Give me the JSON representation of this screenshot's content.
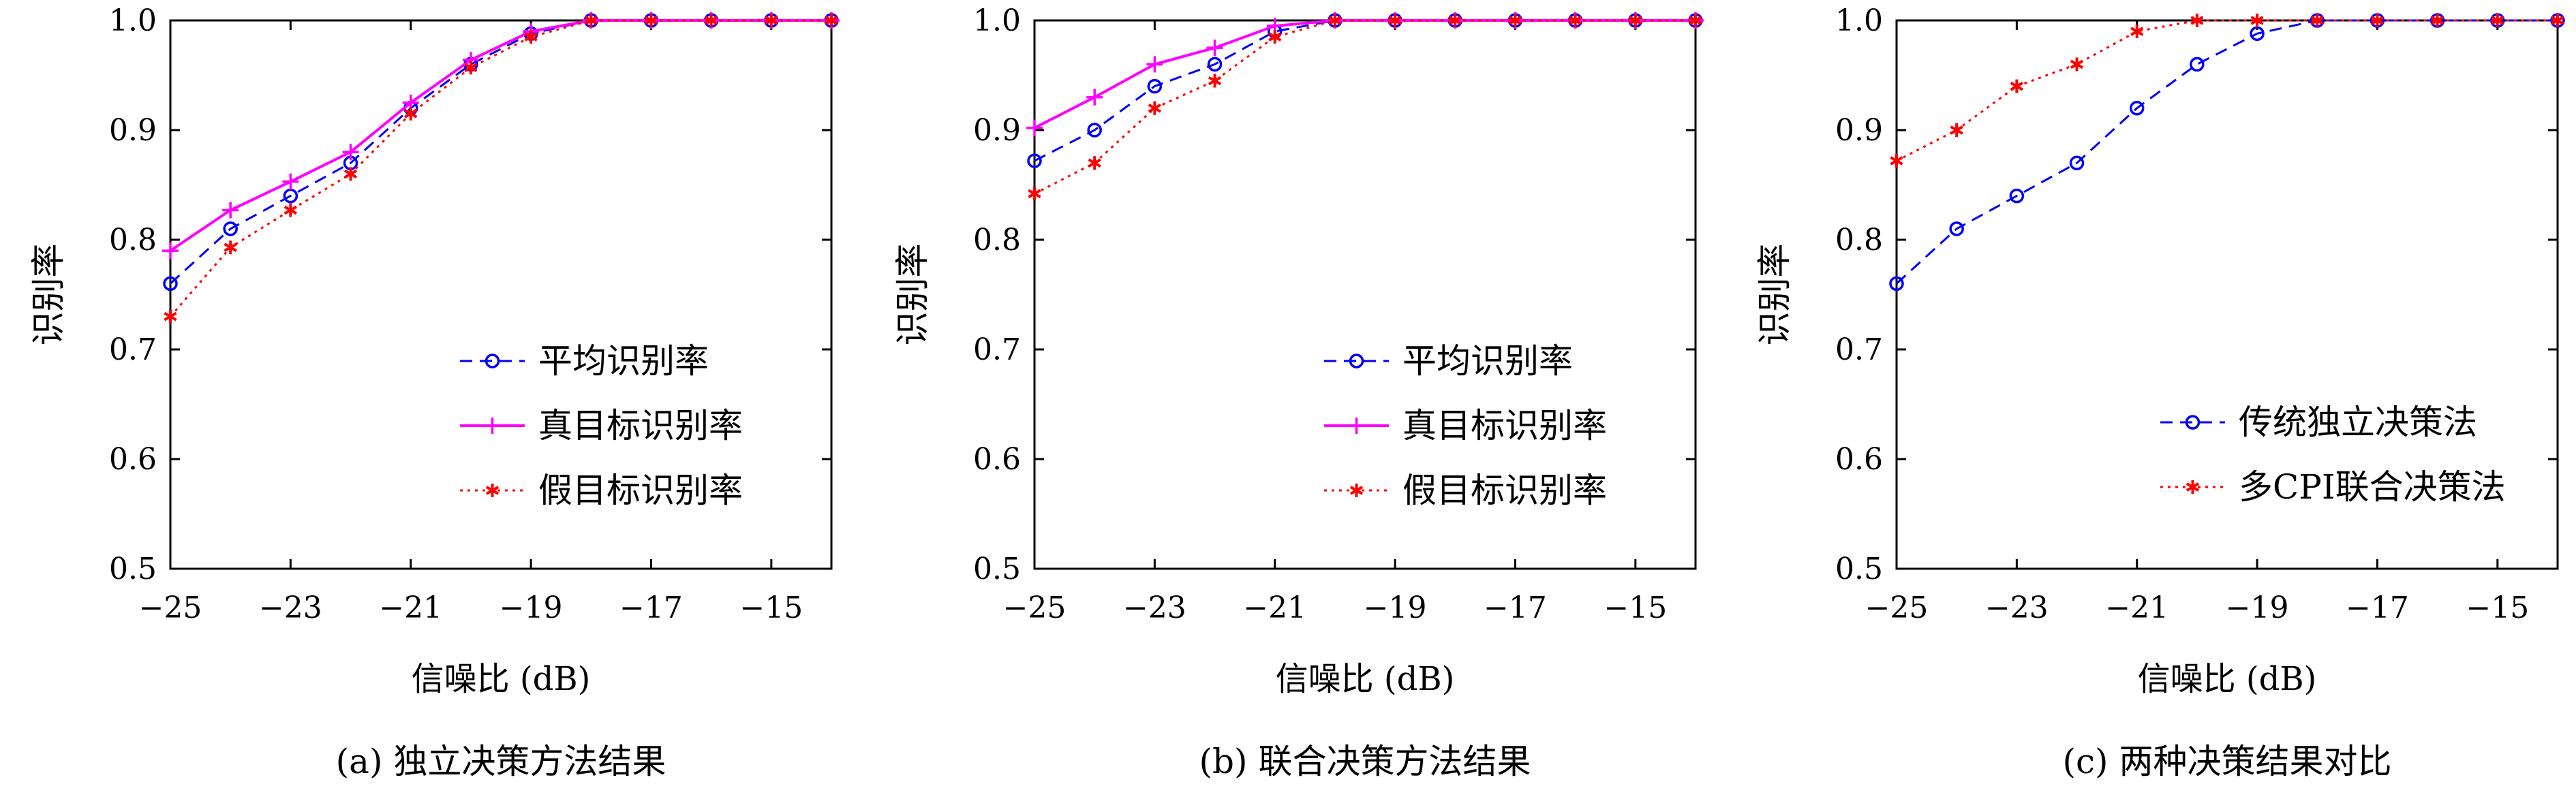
{
  "chart_data": [
    {
      "type": "line",
      "caption": "(a) 独立决策方法结果",
      "xlabel": "信噪比 (dB)",
      "ylabel": "识别率",
      "xlim": [
        -25,
        -14
      ],
      "ylim": [
        0.5,
        1.0
      ],
      "xticks": [
        -25,
        -23,
        -21,
        -19,
        -17,
        -15
      ],
      "xtick_labels": [
        "−25",
        "−23",
        "−21",
        "−19",
        "−17",
        "−15"
      ],
      "yticks": [
        0.5,
        0.6,
        0.7,
        0.8,
        0.9,
        1.0
      ],
      "ytick_labels": [
        "0.5",
        "0.6",
        "0.7",
        "0.8",
        "0.9",
        "1.0"
      ],
      "legend_position": "bottom-right",
      "x": [
        -25,
        -24,
        -23,
        -22,
        -21,
        -20,
        -19,
        -18,
        -17,
        -16,
        -15,
        -14
      ],
      "series": [
        {
          "name": "平均识别率",
          "color": "#0000ff",
          "dash": "dashed",
          "marker": "circle",
          "values": [
            0.76,
            0.81,
            0.84,
            0.87,
            0.92,
            0.96,
            0.988,
            1.0,
            1.0,
            1.0,
            1.0,
            1.0
          ]
        },
        {
          "name": "真目标识别率",
          "color": "#ff00ff",
          "dash": "solid",
          "marker": "plus",
          "values": [
            0.79,
            0.827,
            0.853,
            0.88,
            0.925,
            0.964,
            0.99,
            1.0,
            1.0,
            1.0,
            1.0,
            1.0
          ]
        },
        {
          "name": "假目标识别率",
          "color": "#ff0000",
          "dash": "dotted",
          "marker": "asterisk",
          "values": [
            0.73,
            0.793,
            0.827,
            0.86,
            0.915,
            0.957,
            0.985,
            1.0,
            1.0,
            1.0,
            1.0,
            1.0
          ]
        }
      ]
    },
    {
      "type": "line",
      "caption": "(b) 联合决策方法结果",
      "xlabel": "信噪比 (dB)",
      "ylabel": "识别率",
      "xlim": [
        -25,
        -14
      ],
      "ylim": [
        0.5,
        1.0
      ],
      "xticks": [
        -25,
        -23,
        -21,
        -19,
        -17,
        -15
      ],
      "xtick_labels": [
        "−25",
        "−23",
        "−21",
        "−19",
        "−17",
        "−15"
      ],
      "yticks": [
        0.5,
        0.6,
        0.7,
        0.8,
        0.9,
        1.0
      ],
      "ytick_labels": [
        "0.5",
        "0.6",
        "0.7",
        "0.8",
        "0.9",
        "1.0"
      ],
      "legend_position": "bottom-right",
      "x": [
        -25,
        -24,
        -23,
        -22,
        -21,
        -20,
        -19,
        -18,
        -17,
        -16,
        -15,
        -14
      ],
      "series": [
        {
          "name": "平均识别率",
          "color": "#0000ff",
          "dash": "dashed",
          "marker": "circle",
          "values": [
            0.872,
            0.9,
            0.94,
            0.96,
            0.99,
            1.0,
            1.0,
            1.0,
            1.0,
            1.0,
            1.0,
            1.0
          ]
        },
        {
          "name": "真目标识别率",
          "color": "#ff00ff",
          "dash": "solid",
          "marker": "plus",
          "values": [
            0.902,
            0.93,
            0.96,
            0.975,
            0.995,
            1.0,
            1.0,
            1.0,
            1.0,
            1.0,
            1.0,
            1.0
          ]
        },
        {
          "name": "假目标识别率",
          "color": "#ff0000",
          "dash": "dotted",
          "marker": "asterisk",
          "values": [
            0.842,
            0.87,
            0.92,
            0.945,
            0.985,
            1.0,
            1.0,
            1.0,
            1.0,
            1.0,
            1.0,
            1.0
          ]
        }
      ]
    },
    {
      "type": "line",
      "caption": "(c) 两种决策结果对比",
      "xlabel": "信噪比 (dB)",
      "ylabel": "识别率",
      "xlim": [
        -25,
        -14
      ],
      "ylim": [
        0.5,
        1.0
      ],
      "xticks": [
        -25,
        -23,
        -21,
        -19,
        -17,
        -15
      ],
      "xtick_labels": [
        "−25",
        "−23",
        "−21",
        "−19",
        "−17",
        "−15"
      ],
      "yticks": [
        0.5,
        0.6,
        0.7,
        0.8,
        0.9,
        1.0
      ],
      "ytick_labels": [
        "0.5",
        "0.6",
        "0.7",
        "0.8",
        "0.9",
        "1.0"
      ],
      "legend_position": "bottom-right",
      "x": [
        -25,
        -24,
        -23,
        -22,
        -21,
        -20,
        -19,
        -18,
        -17,
        -16,
        -15,
        -14
      ],
      "series": [
        {
          "name": "传统独立决策法",
          "color": "#0000ff",
          "dash": "dashed",
          "marker": "circle",
          "values": [
            0.76,
            0.81,
            0.84,
            0.87,
            0.92,
            0.96,
            0.988,
            1.0,
            1.0,
            1.0,
            1.0,
            1.0
          ]
        },
        {
          "name": "多CPI联合决策法",
          "color": "#ff0000",
          "dash": "dotted",
          "marker": "asterisk",
          "values": [
            0.872,
            0.9,
            0.94,
            0.96,
            0.99,
            1.0,
            1.0,
            1.0,
            1.0,
            1.0,
            1.0,
            1.0
          ]
        }
      ]
    }
  ]
}
